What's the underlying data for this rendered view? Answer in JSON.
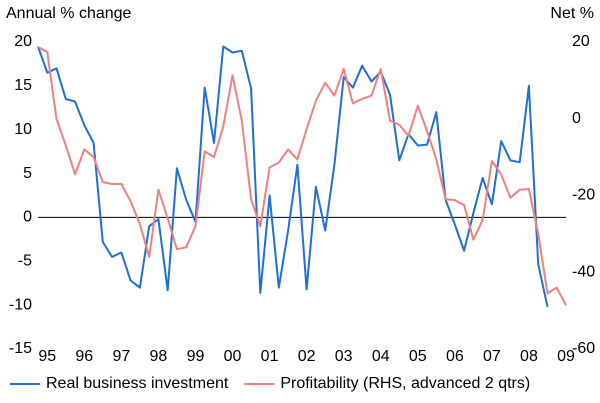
{
  "chart_data": {
    "type": "line",
    "y_label": "Annual % change",
    "y2_label": "Net %",
    "x": [
      1994.75,
      1995,
      1995.25,
      1995.5,
      1995.75,
      1996,
      1996.25,
      1996.5,
      1996.75,
      1997,
      1997.25,
      1997.5,
      1997.75,
      1998,
      1998.25,
      1998.5,
      1998.75,
      1999,
      1999.25,
      1999.5,
      1999.75,
      2000,
      2000.25,
      2000.5,
      2000.75,
      2001,
      2001.25,
      2001.5,
      2001.75,
      2002,
      2002.25,
      2002.5,
      2002.75,
      2003,
      2003.25,
      2003.5,
      2003.75,
      2004,
      2004.25,
      2004.5,
      2004.75,
      2005,
      2005.25,
      2005.5,
      2005.75,
      2006,
      2006.25,
      2006.5,
      2006.75,
      2007,
      2007.25,
      2007.5,
      2007.75,
      2008,
      2008.25,
      2008.5,
      2008.75,
      2009
    ],
    "series": [
      {
        "name": "Real business investment",
        "color": "#1f6fd6",
        "axis": "y",
        "values": [
          19.5,
          16.5,
          17,
          13.5,
          13.2,
          10.5,
          8.5,
          -2.8,
          -4.5,
          -4,
          -7.2,
          -8,
          -1,
          -0.2,
          -8.3,
          5.6,
          2,
          -0.5,
          14.8,
          8.5,
          19.5,
          18.8,
          19,
          14.7,
          -8.6,
          2.5,
          -8,
          -1.5,
          6,
          -8.2,
          3.5,
          -1.5,
          6,
          16,
          14.8,
          17.3,
          15.5,
          16.6,
          14,
          6.5,
          9.5,
          8.2,
          8.3,
          12,
          2,
          -0.8,
          -3.8,
          0.5,
          4.5,
          1.5,
          8.7,
          6.5,
          6.3,
          15,
          -5.3,
          -10.2,
          null,
          null
        ]
      },
      {
        "name": "Profitability (RHS, advanced 2 qtrs)",
        "color": "#f08080",
        "axis": "y2",
        "values": [
          18.7,
          17.4,
          0,
          -7,
          -14.5,
          -8,
          -10,
          -16.5,
          -17,
          -17,
          -21.5,
          -27.5,
          -36,
          -18.5,
          -26,
          -34,
          -33.5,
          -28,
          -8.5,
          -10,
          -2,
          11.3,
          -0.5,
          -21,
          -28,
          -12.7,
          -11.4,
          -8,
          -10.6,
          -2.7,
          4.7,
          9.4,
          6,
          13,
          4,
          5.2,
          6,
          13,
          -0.5,
          -1.6,
          -4.5,
          3.4,
          -3.2,
          -10.6,
          -21,
          -21.2,
          -22.5,
          -31.5,
          -26.4,
          -11,
          -14.5,
          -20.6,
          -18.5,
          -18.3,
          -30,
          -45.5,
          -44,
          -48.6
        ]
      }
    ],
    "xlim": [
      1994.75,
      2009
    ],
    "xticks": [
      {
        "value": 1995,
        "label": "95"
      },
      {
        "value": 1996,
        "label": "96"
      },
      {
        "value": 1997,
        "label": "97"
      },
      {
        "value": 1998,
        "label": "98"
      },
      {
        "value": 1999,
        "label": "99"
      },
      {
        "value": 2000,
        "label": "00"
      },
      {
        "value": 2001,
        "label": "01"
      },
      {
        "value": 2002,
        "label": "02"
      },
      {
        "value": 2003,
        "label": "03"
      },
      {
        "value": 2004,
        "label": "04"
      },
      {
        "value": 2005,
        "label": "05"
      },
      {
        "value": 2006,
        "label": "06"
      },
      {
        "value": 2007,
        "label": "07"
      },
      {
        "value": 2008,
        "label": "08"
      },
      {
        "value": 2009,
        "label": "09"
      }
    ],
    "ylim": [
      -15,
      20
    ],
    "yticks": [
      -15,
      -10,
      -5,
      0,
      5,
      10,
      15,
      20
    ],
    "y2lim": [
      -60,
      20
    ],
    "y2ticks": [
      -60,
      -40,
      -20,
      0,
      20
    ],
    "zero_line": true,
    "grid": false,
    "legend": "bottom"
  }
}
